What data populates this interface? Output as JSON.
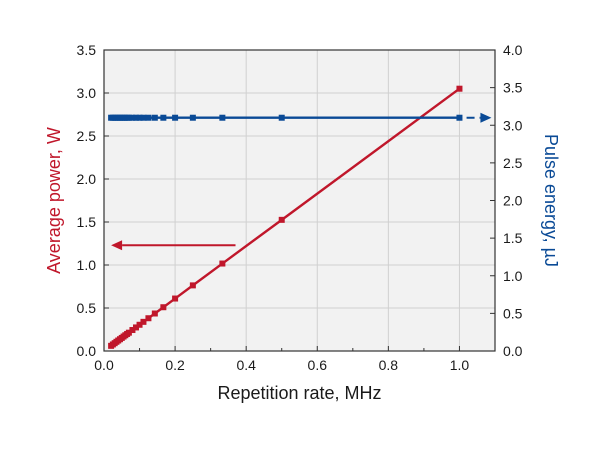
{
  "chart_data": {
    "type": "line",
    "title": "",
    "xlabel": "Repetition rate, MHz",
    "ylabel_left": "Average power, W",
    "ylabel_right": "Pulse energy, µJ",
    "xlim": [
      0,
      1.1
    ],
    "ylim_left": [
      0,
      3.5
    ],
    "ylim_right": [
      0,
      4.0
    ],
    "x_ticks": [
      "0.0",
      "0.2",
      "0.4",
      "0.6",
      "0.8",
      "1.0"
    ],
    "y_left_ticks": [
      "0.0",
      "0.5",
      "1.0",
      "1.5",
      "2.0",
      "2.5",
      "3.0",
      "3.5"
    ],
    "y_right_ticks": [
      "0.0",
      "0.5",
      "1.0",
      "1.5",
      "2.0",
      "2.5",
      "3.0",
      "3.5",
      "4.0"
    ],
    "grid": true,
    "series": [
      {
        "axis": "left",
        "color": "#c0172b",
        "marker": "square",
        "x": [
          0.02,
          0.025,
          0.03,
          0.035,
          0.04,
          0.045,
          0.05,
          0.055,
          0.06,
          0.065,
          0.07,
          0.08,
          0.09,
          0.1,
          0.111,
          0.125,
          0.143,
          0.167,
          0.2,
          0.25,
          0.333,
          0.5,
          1.0
        ],
        "y": [
          0.06,
          0.076,
          0.091,
          0.107,
          0.122,
          0.137,
          0.152,
          0.168,
          0.183,
          0.198,
          0.213,
          0.244,
          0.274,
          0.305,
          0.339,
          0.381,
          0.436,
          0.509,
          0.61,
          0.763,
          1.017,
          1.525,
          3.05
        ]
      },
      {
        "axis": "right",
        "color": "#0a4a96",
        "marker": "square",
        "x": [
          0.02,
          0.025,
          0.03,
          0.035,
          0.04,
          0.045,
          0.05,
          0.055,
          0.06,
          0.065,
          0.07,
          0.08,
          0.09,
          0.1,
          0.111,
          0.125,
          0.143,
          0.167,
          0.2,
          0.25,
          0.333,
          0.5,
          1.0
        ],
        "y": [
          3.1,
          3.1,
          3.1,
          3.1,
          3.1,
          3.1,
          3.1,
          3.1,
          3.1,
          3.1,
          3.1,
          3.1,
          3.1,
          3.1,
          3.1,
          3.1,
          3.1,
          3.1,
          3.1,
          3.1,
          3.1,
          3.1,
          3.1
        ]
      }
    ],
    "annotations": [
      {
        "type": "arrow",
        "color": "#c0172b",
        "from": [
          0.37,
          1.23
        ],
        "to": [
          0.02,
          1.23
        ],
        "points_to_axis": "left"
      },
      {
        "type": "arrow",
        "color": "#0a4a96",
        "from": [
          1.02,
          3.1
        ],
        "to": [
          1.09,
          3.1
        ],
        "points_to_axis": "right"
      }
    ]
  }
}
